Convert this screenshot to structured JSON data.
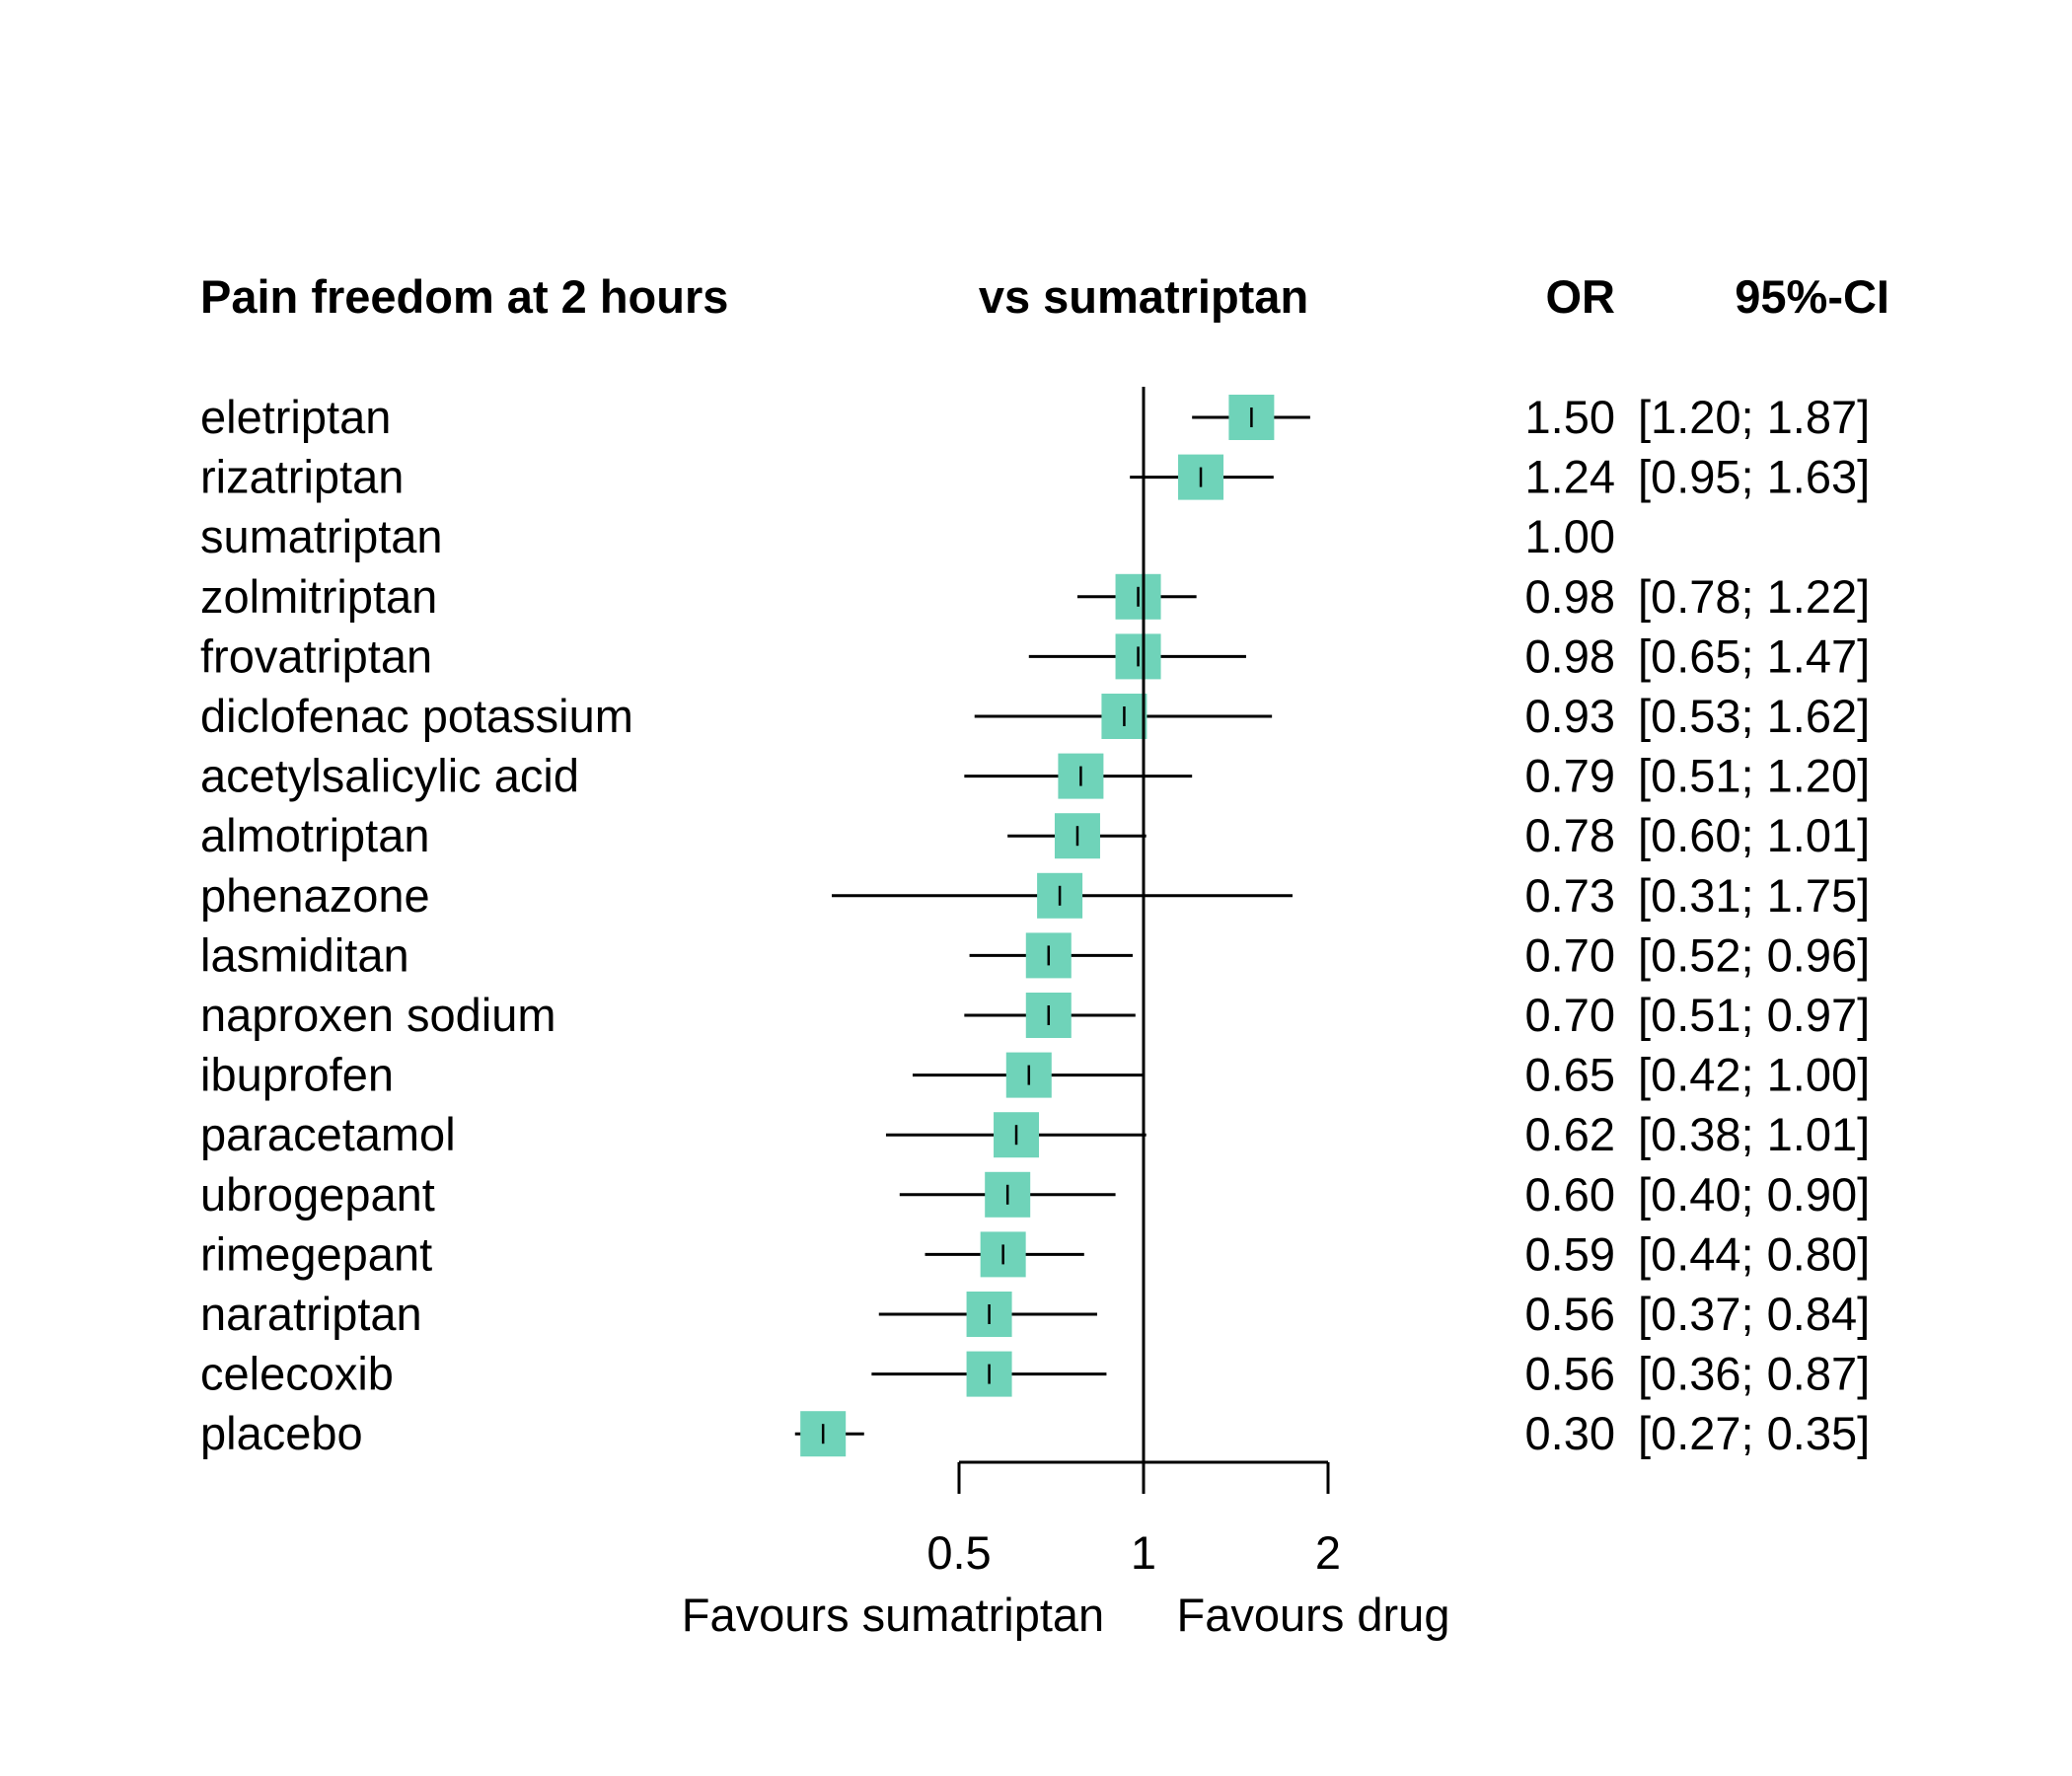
{
  "headers": {
    "study": "Pain freedom at 2 hours",
    "comparison": "vs sumatriptan",
    "or": "OR",
    "ci": "95%-CI"
  },
  "axis": {
    "favours_left": "Favours sumatriptan",
    "favours_right": "Favours drug"
  },
  "colors": {
    "box": "#6fd3b9",
    "line": "#000000"
  },
  "chart_data": {
    "type": "forest",
    "title": "Pain freedom at 2 hours",
    "comparison": "vs sumatriptan",
    "measure": "OR",
    "scale": "log",
    "reference": 1,
    "xlim": [
      0.5,
      2
    ],
    "xticks": [
      0.5,
      1,
      2
    ],
    "xtick_labels": [
      "0.5",
      "1",
      "2"
    ],
    "rows": [
      {
        "name": "eletriptan",
        "or": 1.5,
        "lower": 1.2,
        "upper": 1.87,
        "or_text": "1.50",
        "ci_text": "[1.20; 1.87]"
      },
      {
        "name": "rizatriptan",
        "or": 1.24,
        "lower": 0.95,
        "upper": 1.63,
        "or_text": "1.24",
        "ci_text": "[0.95; 1.63]"
      },
      {
        "name": "sumatriptan",
        "or": 1.0,
        "lower": null,
        "upper": null,
        "or_text": "1.00",
        "ci_text": ""
      },
      {
        "name": "zolmitriptan",
        "or": 0.98,
        "lower": 0.78,
        "upper": 1.22,
        "or_text": "0.98",
        "ci_text": "[0.78; 1.22]"
      },
      {
        "name": "frovatriptan",
        "or": 0.98,
        "lower": 0.65,
        "upper": 1.47,
        "or_text": "0.98",
        "ci_text": "[0.65; 1.47]"
      },
      {
        "name": "diclofenac potassium",
        "or": 0.93,
        "lower": 0.53,
        "upper": 1.62,
        "or_text": "0.93",
        "ci_text": "[0.53; 1.62]"
      },
      {
        "name": "acetylsalicylic acid",
        "or": 0.79,
        "lower": 0.51,
        "upper": 1.2,
        "or_text": "0.79",
        "ci_text": "[0.51; 1.20]"
      },
      {
        "name": "almotriptan",
        "or": 0.78,
        "lower": 0.6,
        "upper": 1.01,
        "or_text": "0.78",
        "ci_text": "[0.60; 1.01]"
      },
      {
        "name": "phenazone",
        "or": 0.73,
        "lower": 0.31,
        "upper": 1.75,
        "or_text": "0.73",
        "ci_text": "[0.31; 1.75]"
      },
      {
        "name": "lasmiditan",
        "or": 0.7,
        "lower": 0.52,
        "upper": 0.96,
        "or_text": "0.70",
        "ci_text": "[0.52; 0.96]"
      },
      {
        "name": "naproxen sodium",
        "or": 0.7,
        "lower": 0.51,
        "upper": 0.97,
        "or_text": "0.70",
        "ci_text": "[0.51; 0.97]"
      },
      {
        "name": "ibuprofen",
        "or": 0.65,
        "lower": 0.42,
        "upper": 1.0,
        "or_text": "0.65",
        "ci_text": "[0.42; 1.00]"
      },
      {
        "name": "paracetamol",
        "or": 0.62,
        "lower": 0.38,
        "upper": 1.01,
        "or_text": "0.62",
        "ci_text": "[0.38; 1.01]"
      },
      {
        "name": "ubrogepant",
        "or": 0.6,
        "lower": 0.4,
        "upper": 0.9,
        "or_text": "0.60",
        "ci_text": "[0.40; 0.90]"
      },
      {
        "name": "rimegepant",
        "or": 0.59,
        "lower": 0.44,
        "upper": 0.8,
        "or_text": "0.59",
        "ci_text": "[0.44; 0.80]"
      },
      {
        "name": "naratriptan",
        "or": 0.56,
        "lower": 0.37,
        "upper": 0.84,
        "or_text": "0.56",
        "ci_text": "[0.37; 0.84]"
      },
      {
        "name": "celecoxib",
        "or": 0.56,
        "lower": 0.36,
        "upper": 0.87,
        "or_text": "0.56",
        "ci_text": "[0.36; 0.87]"
      },
      {
        "name": "placebo",
        "or": 0.3,
        "lower": 0.27,
        "upper": 0.35,
        "or_text": "0.30",
        "ci_text": "[0.27; 0.35]"
      }
    ]
  }
}
